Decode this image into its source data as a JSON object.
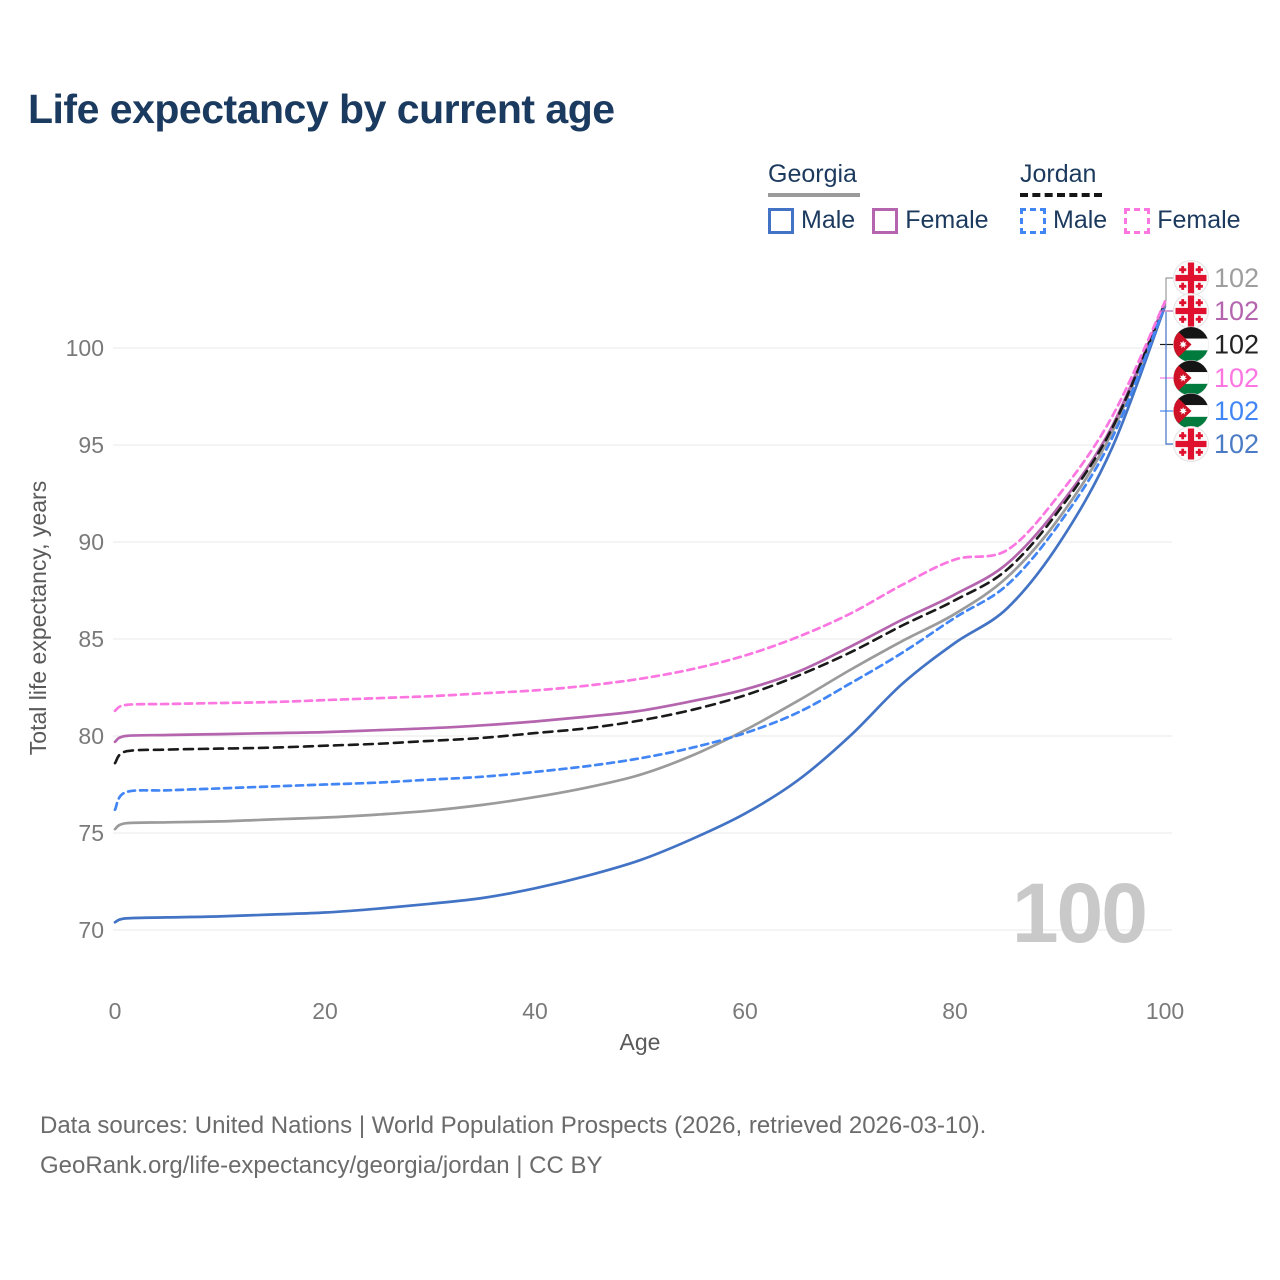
{
  "title": "Life expectancy by current age",
  "watermark": {
    "text": "100"
  },
  "legend": {
    "groups": [
      {
        "label": "Georgia",
        "line_style": "solid",
        "line_color": "#9b9b9b",
        "items": [
          {
            "label": "Male",
            "color": "#4a7bc4",
            "dashed": false
          },
          {
            "label": "Female",
            "color": "#b465ae",
            "dashed": false
          }
        ]
      },
      {
        "label": "Jordan",
        "line_style": "dashed",
        "line_color": "#161616",
        "items": [
          {
            "label": "Male",
            "color": "#4285f4",
            "dashed": true
          },
          {
            "label": "Female",
            "color": "#fb76e1",
            "dashed": true
          }
        ]
      }
    ]
  },
  "chart_data": {
    "type": "line",
    "title": "Life expectancy by current age",
    "xlabel": "Age",
    "ylabel": "Total life expectancy, years",
    "x_ticks": [
      0,
      20,
      40,
      60,
      80,
      100
    ],
    "y_ticks": [
      70,
      75,
      80,
      85,
      90,
      95,
      100
    ],
    "xlim": [
      0,
      100
    ],
    "ylim": [
      69.5,
      103
    ],
    "grid": true,
    "legend_position": "top-right",
    "x": [
      0,
      1,
      5,
      10,
      15,
      20,
      25,
      30,
      35,
      40,
      45,
      50,
      55,
      60,
      65,
      70,
      75,
      80,
      85,
      90,
      95,
      100
    ],
    "series": [
      {
        "key": "georgia_male",
        "country": "Georgia",
        "sex": "Male",
        "name": "Georgia Male",
        "color": "#4273c4",
        "dash": "",
        "width": 2.7,
        "values": [
          70.4,
          70.6,
          70.65,
          70.7,
          70.8,
          70.9,
          71.1,
          71.35,
          71.65,
          72.15,
          72.8,
          73.6,
          74.7,
          76.0,
          77.7,
          80.0,
          82.7,
          84.8,
          86.6,
          90.0,
          94.9,
          102.15
        ]
      },
      {
        "key": "georgia_all",
        "country": "Georgia",
        "sex": "All",
        "name": "Georgia",
        "color": "#9b9b9b",
        "dash": "",
        "width": 2.7,
        "values": [
          75.2,
          75.5,
          75.55,
          75.6,
          75.7,
          75.8,
          75.95,
          76.15,
          76.45,
          76.85,
          77.35,
          78.0,
          79.0,
          80.3,
          81.8,
          83.4,
          84.9,
          86.3,
          88.2,
          91.3,
          95.7,
          102.25
        ]
      },
      {
        "key": "georgia_female",
        "country": "Georgia",
        "sex": "Female",
        "name": "Georgia Female",
        "color": "#b465ae",
        "dash": "",
        "width": 2.7,
        "values": [
          79.7,
          80.0,
          80.05,
          80.1,
          80.15,
          80.2,
          80.3,
          80.4,
          80.55,
          80.75,
          81.0,
          81.3,
          81.8,
          82.4,
          83.3,
          84.6,
          86.0,
          87.3,
          88.9,
          91.9,
          96.0,
          102.35
        ]
      },
      {
        "key": "jordan_all",
        "country": "Jordan",
        "sex": "All",
        "name": "Jordan",
        "color": "#1a1a1a",
        "dash": "9 6",
        "width": 2.6,
        "values": [
          78.6,
          79.2,
          79.3,
          79.35,
          79.4,
          79.5,
          79.6,
          79.75,
          79.9,
          80.15,
          80.4,
          80.8,
          81.35,
          82.1,
          83.1,
          84.3,
          85.7,
          87.0,
          88.6,
          91.7,
          95.9,
          102.3
        ]
      },
      {
        "key": "jordan_male",
        "country": "Jordan",
        "sex": "Male",
        "name": "Jordan Male",
        "color": "#4285f4",
        "dash": "7 5",
        "width": 2.7,
        "values": [
          76.2,
          77.1,
          77.2,
          77.3,
          77.4,
          77.5,
          77.6,
          77.75,
          77.9,
          78.15,
          78.45,
          78.85,
          79.4,
          80.15,
          81.2,
          82.7,
          84.3,
          86.1,
          87.8,
          91.0,
          95.4,
          102.2
        ]
      },
      {
        "key": "jordan_female",
        "country": "Jordan",
        "sex": "Female",
        "name": "Jordan Female",
        "color": "#fb76e1",
        "dash": "7 5",
        "width": 2.7,
        "values": [
          81.3,
          81.6,
          81.65,
          81.7,
          81.75,
          81.85,
          81.95,
          82.05,
          82.2,
          82.35,
          82.6,
          82.95,
          83.45,
          84.15,
          85.1,
          86.3,
          87.8,
          89.1,
          89.6,
          92.5,
          96.5,
          102.4
        ]
      }
    ],
    "end_labels": [
      {
        "series": "georgia_all",
        "flag": "georgia",
        "text": "102",
        "color": "#9e9e9e"
      },
      {
        "series": "georgia_female",
        "flag": "georgia",
        "text": "102",
        "color": "#b465ae"
      },
      {
        "series": "jordan_all",
        "flag": "jordan",
        "text": "102",
        "color": "#222222"
      },
      {
        "series": "jordan_female",
        "flag": "jordan",
        "text": "102",
        "color": "#fb76e1"
      },
      {
        "series": "jordan_male",
        "flag": "jordan",
        "text": "102",
        "color": "#4285f4"
      },
      {
        "series": "georgia_male",
        "flag": "georgia",
        "text": "102",
        "color": "#4a7bc4"
      }
    ],
    "flag_colors": {
      "georgia_red": "#e0112f",
      "jordan_black": "#151515",
      "jordan_green": "#007a3d",
      "jordan_red": "#ce1126"
    }
  },
  "footer": {
    "line1": "Data sources: United Nations | World Population Prospects (2026, retrieved 2026-03-10).",
    "line2": "GeoRank.org/life-expectancy/georgia/jordan | CC BY"
  }
}
